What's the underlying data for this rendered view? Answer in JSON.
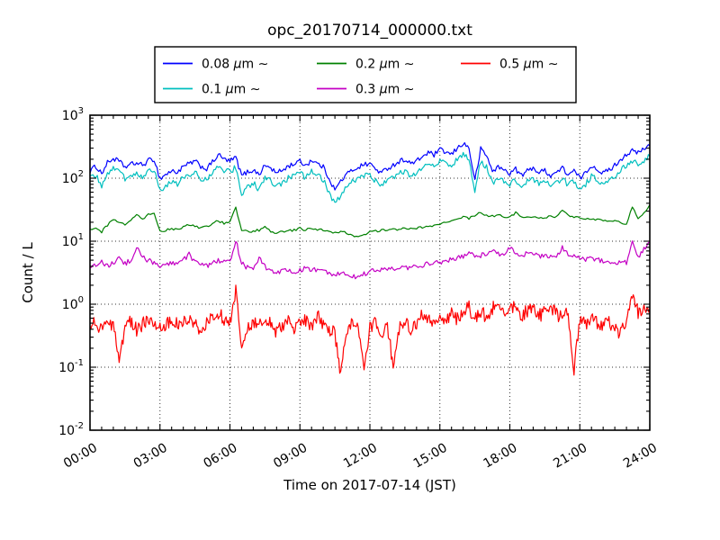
{
  "chart_data": {
    "type": "line",
    "title": "opc_20170714_000000.txt",
    "xlabel": "Time on 2017-07-14 (JST)",
    "ylabel": "Count / L",
    "x_axis": {
      "min_hours": 0,
      "max_hours": 24,
      "major_tick_hours": 3,
      "minor_tick_hours": 0.5,
      "tick_labels": [
        "00:00",
        "03:00",
        "06:00",
        "09:00",
        "12:00",
        "15:00",
        "18:00",
        "21:00",
        "24:00"
      ],
      "tick_label_rotation_deg": 30
    },
    "y_axis": {
      "scale": "log",
      "min": 0.01,
      "max": 1000,
      "tick_exponents": [
        3,
        2,
        1,
        0,
        -1,
        -2
      ],
      "tick_base": "10"
    },
    "grid": {
      "visible": true,
      "style": "dotted",
      "color": "#333333"
    },
    "legend": {
      "position": "top-outside",
      "columns": 3,
      "rows": 2,
      "border_color": "#000000",
      "fill": "#ffffff"
    },
    "sample_interval_hours": 0.25,
    "x_start_hours": 0,
    "series": [
      {
        "name": "0.08 μm ∼",
        "color": "#0000ff",
        "noise_dex": 0.04,
        "jitter_substeps": 4,
        "values": [
          130,
          155,
          120,
          175,
          205,
          185,
          150,
          165,
          175,
          160,
          190,
          200,
          98,
          115,
          130,
          125,
          150,
          170,
          185,
          155,
          140,
          180,
          235,
          200,
          185,
          215,
          110,
          125,
          135,
          115,
          160,
          145,
          120,
          135,
          155,
          170,
          185,
          160,
          195,
          170,
          150,
          100,
          65,
          90,
          115,
          135,
          150,
          165,
          170,
          140,
          120,
          145,
          160,
          185,
          200,
          170,
          185,
          220,
          255,
          235,
          280,
          260,
          235,
          300,
          360,
          300,
          90,
          290,
          230,
          130,
          150,
          135,
          120,
          140,
          110,
          130,
          150,
          120,
          135,
          110,
          125,
          145,
          115,
          130,
          100,
          120,
          160,
          140,
          120,
          135,
          160,
          200,
          240,
          270,
          250,
          290,
          330
        ]
      },
      {
        "name": "0.1 μm ∼",
        "color": "#00bfbf",
        "noise_dex": 0.045,
        "jitter_substeps": 4,
        "values": [
          100,
          110,
          75,
          115,
          140,
          125,
          100,
          110,
          120,
          105,
          130,
          140,
          62,
          75,
          88,
          82,
          100,
          115,
          125,
          100,
          92,
          120,
          160,
          135,
          125,
          150,
          55,
          70,
          85,
          65,
          100,
          90,
          72,
          85,
          100,
          110,
          120,
          100,
          130,
          110,
          95,
          60,
          38,
          55,
          72,
          88,
          98,
          108,
          112,
          90,
          78,
          95,
          105,
          120,
          130,
          110,
          120,
          145,
          170,
          155,
          185,
          170,
          155,
          200,
          235,
          200,
          60,
          190,
          150,
          85,
          100,
          90,
          80,
          95,
          75,
          88,
          100,
          80,
          92,
          75,
          85,
          98,
          78,
          88,
          68,
          80,
          108,
          95,
          82,
          92,
          108,
          135,
          160,
          185,
          165,
          195,
          225
        ]
      },
      {
        "name": "0.2 μm ∼",
        "color": "#008000",
        "noise_dex": 0.02,
        "jitter_substeps": 3,
        "values": [
          15,
          16,
          14,
          18,
          22,
          20,
          18,
          21,
          26,
          23,
          26,
          28,
          14,
          15,
          16,
          15,
          17,
          18,
          17,
          16,
          17,
          19,
          21,
          19,
          20,
          34,
          15,
          14,
          14.5,
          15,
          17,
          14,
          13.5,
          14,
          14.5,
          15,
          16,
          15,
          16,
          15.5,
          15,
          14,
          13.5,
          14,
          13.5,
          12.5,
          11.5,
          12.5,
          14,
          14.5,
          15,
          15,
          15.5,
          15,
          16,
          15.5,
          16,
          16.5,
          17,
          18,
          19,
          20,
          21,
          22,
          24,
          23,
          26,
          29,
          26,
          25,
          26,
          24,
          25,
          28,
          25,
          24,
          25,
          23,
          24,
          25,
          24,
          31,
          25,
          24,
          24,
          23,
          23,
          22,
          22,
          21,
          21,
          20,
          19,
          35,
          23,
          28,
          38
        ]
      },
      {
        "name": "0.3 μm ∼",
        "color": "#c400c4",
        "noise_dex": 0.04,
        "jitter_substeps": 4,
        "values": [
          3.5,
          4.2,
          4.8,
          4.0,
          4.5,
          5.2,
          4.4,
          5.0,
          7.8,
          5.5,
          5.0,
          4.6,
          3.9,
          4.2,
          4.5,
          4.1,
          5.0,
          6.3,
          4.6,
          4.2,
          4.0,
          4.5,
          5.0,
          4.6,
          4.8,
          10.5,
          4.4,
          3.8,
          3.6,
          5.6,
          3.9,
          3.5,
          3.2,
          3.4,
          3.6,
          3.3,
          3.4,
          3.7,
          3.5,
          3.6,
          3.4,
          3.1,
          2.9,
          3.1,
          3.2,
          2.8,
          2.7,
          3.0,
          3.3,
          3.4,
          3.5,
          3.6,
          3.7,
          3.6,
          3.8,
          3.9,
          4.0,
          4.2,
          4.4,
          4.5,
          4.7,
          4.9,
          5.1,
          5.4,
          5.8,
          7.0,
          5.6,
          6.0,
          6.5,
          7.4,
          6.2,
          6.0,
          7.8,
          6.2,
          5.9,
          6.3,
          6.1,
          5.8,
          6.0,
          5.7,
          5.9,
          7.9,
          6.1,
          5.7,
          5.4,
          5.2,
          5.3,
          5.0,
          4.9,
          4.7,
          4.6,
          4.5,
          4.6,
          9.4,
          5.5,
          7.5,
          9.8
        ]
      },
      {
        "name": "0.5 μm ∼",
        "color": "#ff0000",
        "noise_dex": 0.11,
        "jitter_substeps": 6,
        "values": [
          0.45,
          0.55,
          0.38,
          0.5,
          0.42,
          0.13,
          0.45,
          0.52,
          0.4,
          0.48,
          0.55,
          0.44,
          0.4,
          0.5,
          0.58,
          0.46,
          0.52,
          0.62,
          0.48,
          0.4,
          0.5,
          0.68,
          0.75,
          0.58,
          0.52,
          1.7,
          0.16,
          0.42,
          0.55,
          0.48,
          0.62,
          0.52,
          0.35,
          0.48,
          0.58,
          0.42,
          0.6,
          0.52,
          0.45,
          0.68,
          0.48,
          0.4,
          0.35,
          0.07,
          0.42,
          0.5,
          0.38,
          0.09,
          0.45,
          0.52,
          0.35,
          0.48,
          0.1,
          0.42,
          0.55,
          0.4,
          0.52,
          0.65,
          0.55,
          0.48,
          0.62,
          0.55,
          0.7,
          0.58,
          0.75,
          0.88,
          0.6,
          0.72,
          0.65,
          0.85,
          0.95,
          0.75,
          1.0,
          0.8,
          0.65,
          0.78,
          0.85,
          0.65,
          0.75,
          0.88,
          0.7,
          0.6,
          0.72,
          0.09,
          0.55,
          0.48,
          0.6,
          0.52,
          0.45,
          0.55,
          0.4,
          0.35,
          0.5,
          1.3,
          0.75,
          0.95,
          0.85
        ]
      }
    ]
  }
}
